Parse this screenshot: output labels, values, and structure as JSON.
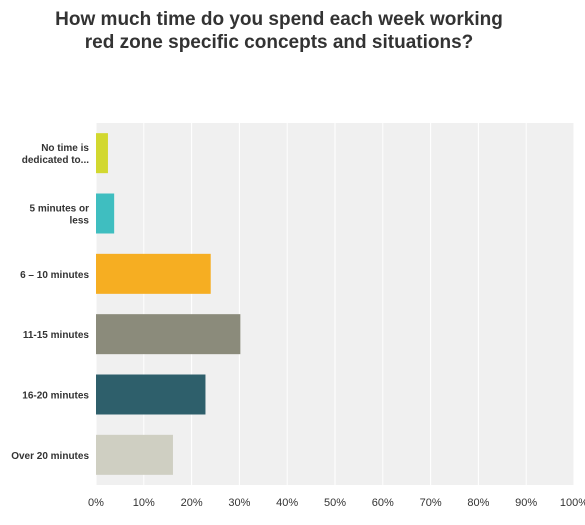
{
  "chart_data": {
    "type": "bar",
    "orientation": "horizontal",
    "title": "How much time do you spend each week working red zone specific concepts and situations?",
    "categories": [
      [
        "No time is",
        "dedicated to..."
      ],
      [
        "5 minutes or",
        "less"
      ],
      [
        "6 – 10 minutes"
      ],
      [
        "11-15 minutes"
      ],
      [
        "16-20 minutes"
      ],
      [
        "Over 20 minutes"
      ]
    ],
    "values": [
      2.5,
      3.8,
      24,
      30.2,
      22.9,
      16.1
    ],
    "colors": [
      "#d2d82f",
      "#3fbec0",
      "#f6ae22",
      "#8b8b7b",
      "#2e5f6b",
      "#cfcfc2"
    ],
    "xlim": [
      0,
      100
    ],
    "ticks": [
      "0%",
      "10%",
      "20%",
      "30%",
      "40%",
      "50%",
      "60%",
      "70%",
      "80%",
      "90%",
      "100%"
    ],
    "grid": true,
    "legend": "none"
  }
}
